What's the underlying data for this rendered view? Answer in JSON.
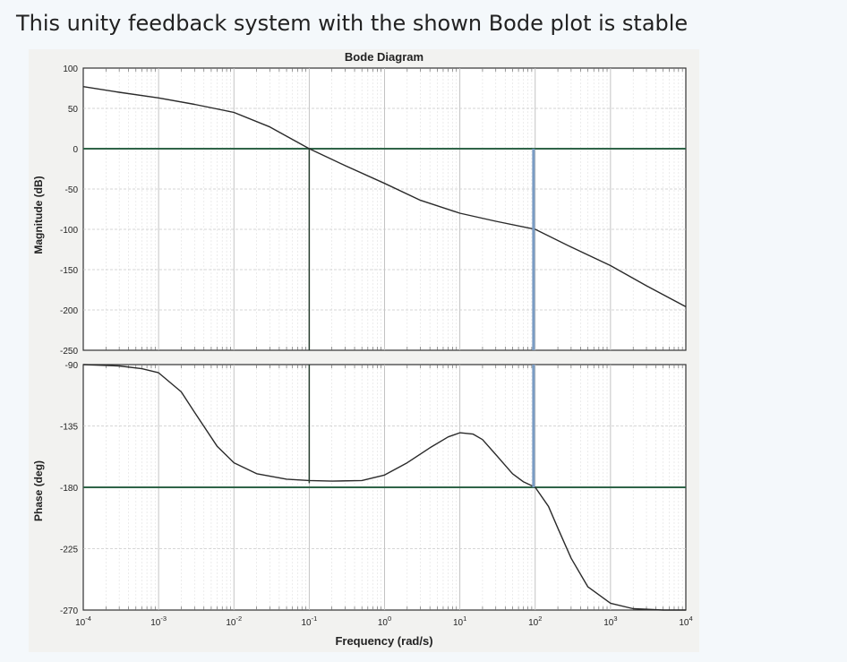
{
  "question": {
    "text": "This unity feedback system with the shown Bode plot is stable"
  },
  "chart_data": {
    "type": "line",
    "title": "Bode Diagram",
    "xlabel": "Frequency (rad/s)",
    "xscale": "log",
    "xlim": [
      0.0001,
      10000
    ],
    "xticks": [
      {
        "value": 0.0001,
        "base": "10",
        "exp": "-4"
      },
      {
        "value": 0.001,
        "base": "10",
        "exp": "-3"
      },
      {
        "value": 0.01,
        "base": "10",
        "exp": "-2"
      },
      {
        "value": 0.1,
        "base": "10",
        "exp": "-1"
      },
      {
        "value": 1,
        "base": "10",
        "exp": "0"
      },
      {
        "value": 10,
        "base": "10",
        "exp": "1"
      },
      {
        "value": 100,
        "base": "10",
        "exp": "2"
      },
      {
        "value": 1000,
        "base": "10",
        "exp": "3"
      },
      {
        "value": 10000,
        "base": "10",
        "exp": "4"
      }
    ],
    "grid": true,
    "magnitude": {
      "ylabel": "Magnitude (dB)",
      "ylim": [
        -250,
        100
      ],
      "yticks": [
        100,
        50,
        0,
        -50,
        -100,
        -150,
        -200,
        -250
      ],
      "x": [
        0.0001,
        0.0003,
        0.001,
        0.003,
        0.01,
        0.03,
        0.1,
        0.3,
        1,
        3,
        10,
        30,
        100,
        300,
        1000,
        3000,
        10000
      ],
      "y": [
        77,
        70,
        63,
        55,
        45,
        27,
        0,
        -21,
        -43,
        -64,
        -80,
        -90,
        -100,
        -122,
        -145,
        -170,
        -196
      ]
    },
    "phase": {
      "ylabel": "Phase (deg)",
      "ylim": [
        -270,
        -90
      ],
      "yticks": [
        -90,
        -135,
        -180,
        -225,
        -270
      ],
      "x": [
        0.0001,
        0.0003,
        0.0006,
        0.001,
        0.002,
        0.003,
        0.006,
        0.01,
        0.02,
        0.05,
        0.1,
        0.2,
        0.5,
        1,
        2,
        4,
        7,
        10,
        15,
        20,
        30,
        50,
        70,
        100,
        150,
        200,
        300,
        500,
        1000,
        2000,
        5000,
        10000
      ],
      "y": [
        -90,
        -91,
        -93,
        -96,
        -110,
        -125,
        -150,
        -162,
        -170,
        -174,
        -175,
        -175.5,
        -175,
        -171,
        -162,
        -151,
        -143,
        -140,
        -141,
        -145,
        -156,
        -170,
        -176,
        -180,
        -194,
        -210,
        -232,
        -253,
        -265,
        -269,
        -270,
        -270
      ]
    },
    "reference_lines": {
      "magnitude_y": 0,
      "phase_y": -180,
      "gain_crossover_x": 0.1,
      "phase_crossover_x": 95
    },
    "colors": {
      "curve": "#2a2a2a",
      "reference": "#2f6448",
      "phase_crossover_line": "#7a9cc4",
      "gain_crossover_line": "#263d2e"
    }
  }
}
